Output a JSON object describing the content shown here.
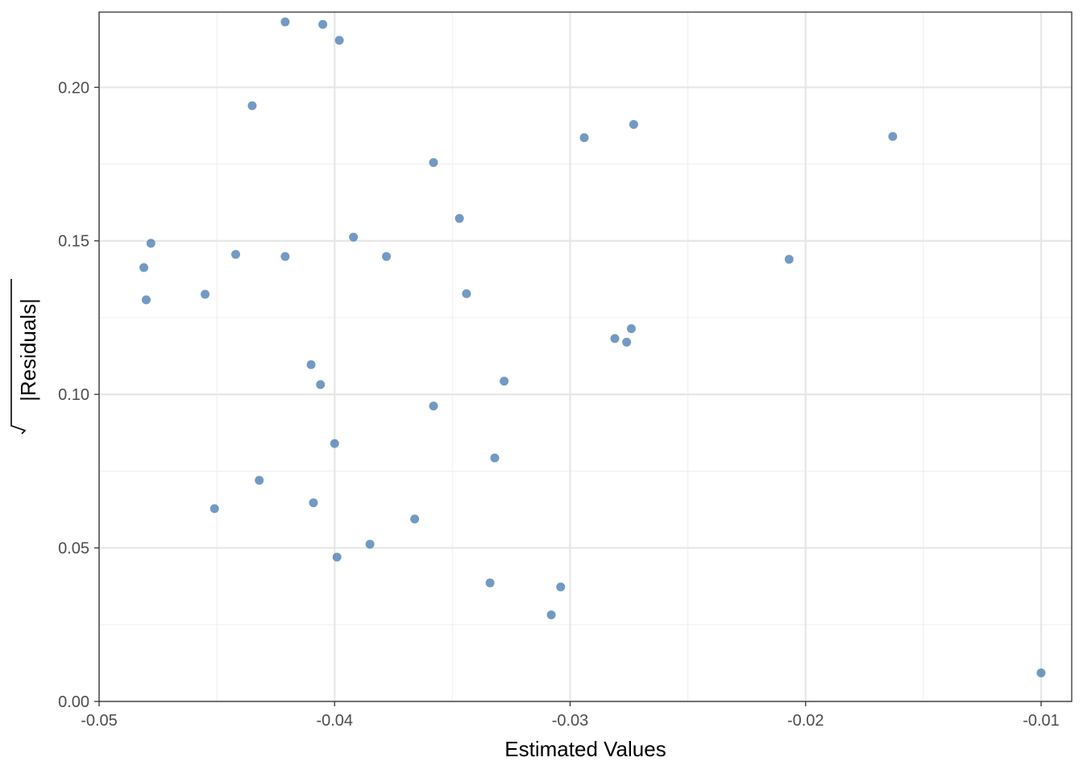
{
  "chart_data": {
    "type": "scatter",
    "title": "",
    "xlabel": "Estimated Values",
    "ylabel": "Residuals",
    "ylabel_style": "sqrt(|Residuals|)",
    "xlim": [
      -0.05,
      -0.0087
    ],
    "ylim": [
      0.0,
      0.2245
    ],
    "x_ticks": [
      {
        "value": -0.05,
        "label": "-0.05"
      },
      {
        "value": -0.04,
        "label": "-0.04"
      },
      {
        "value": -0.03,
        "label": "-0.03"
      },
      {
        "value": -0.02,
        "label": "-0.02"
      },
      {
        "value": -0.01,
        "label": "-0.01"
      }
    ],
    "y_ticks": [
      {
        "value": 0.0,
        "label": "0.00"
      },
      {
        "value": 0.05,
        "label": "0.05"
      },
      {
        "value": 0.1,
        "label": "0.10"
      },
      {
        "value": 0.15,
        "label": "0.15"
      },
      {
        "value": 0.2,
        "label": "0.20"
      }
    ],
    "grid": true,
    "point_color": "#4f81b4",
    "points": [
      {
        "x": -0.0421,
        "y": 0.2213
      },
      {
        "x": -0.0405,
        "y": 0.2205
      },
      {
        "x": -0.0398,
        "y": 0.2153
      },
      {
        "x": -0.0435,
        "y": 0.194
      },
      {
        "x": -0.0273,
        "y": 0.1879
      },
      {
        "x": -0.0294,
        "y": 0.1836
      },
      {
        "x": -0.0163,
        "y": 0.184
      },
      {
        "x": -0.0358,
        "y": 0.1755
      },
      {
        "x": -0.0347,
        "y": 0.1573
      },
      {
        "x": -0.0392,
        "y": 0.1512
      },
      {
        "x": -0.0478,
        "y": 0.1492
      },
      {
        "x": -0.0442,
        "y": 0.1456
      },
      {
        "x": -0.0421,
        "y": 0.1449
      },
      {
        "x": -0.0378,
        "y": 0.1449
      },
      {
        "x": -0.0207,
        "y": 0.144
      },
      {
        "x": -0.0481,
        "y": 0.1413
      },
      {
        "x": -0.048,
        "y": 0.1308
      },
      {
        "x": -0.0455,
        "y": 0.1326
      },
      {
        "x": -0.0344,
        "y": 0.1328
      },
      {
        "x": -0.0274,
        "y": 0.1214
      },
      {
        "x": -0.0281,
        "y": 0.1182
      },
      {
        "x": -0.0276,
        "y": 0.117
      },
      {
        "x": -0.041,
        "y": 0.1097
      },
      {
        "x": -0.0406,
        "y": 0.1032
      },
      {
        "x": -0.0328,
        "y": 0.1043
      },
      {
        "x": -0.0358,
        "y": 0.0962
      },
      {
        "x": -0.04,
        "y": 0.084
      },
      {
        "x": -0.0332,
        "y": 0.0793
      },
      {
        "x": -0.0432,
        "y": 0.072
      },
      {
        "x": -0.0409,
        "y": 0.0647
      },
      {
        "x": -0.0451,
        "y": 0.0628
      },
      {
        "x": -0.0366,
        "y": 0.0594
      },
      {
        "x": -0.0385,
        "y": 0.0512
      },
      {
        "x": -0.0399,
        "y": 0.047
      },
      {
        "x": -0.0334,
        "y": 0.0386
      },
      {
        "x": -0.0304,
        "y": 0.0373
      },
      {
        "x": -0.0308,
        "y": 0.0282
      },
      {
        "x": -0.01,
        "y": 0.0093
      }
    ]
  }
}
